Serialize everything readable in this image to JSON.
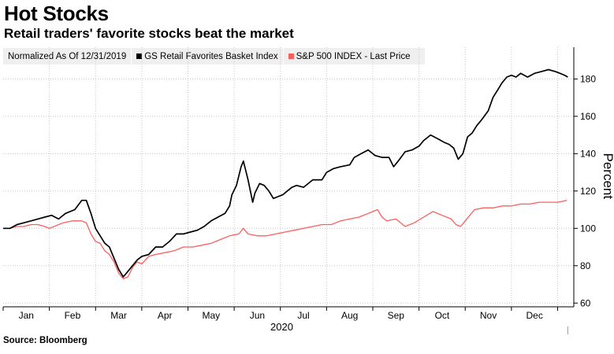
{
  "header": {
    "title": "Hot Stocks",
    "subtitle": "Retail traders' favorite stocks beat the market"
  },
  "legend": {
    "note": "Normalized As Of 12/31/2019",
    "items": [
      {
        "label": "GS Retail Favorites Basket Index",
        "color": "#000000"
      },
      {
        "label": "S&P 500 INDEX - Last Price",
        "color": "#ff5c5c"
      }
    ]
  },
  "footer": {
    "source": "Source: Bloomberg"
  },
  "chart_data": {
    "type": "line",
    "title": "Hot Stocks",
    "subtitle": "Retail traders' favorite stocks beat the market",
    "xlabel": "2020",
    "ylabel": "Percent",
    "x_range": [
      0,
      12.35
    ],
    "ylim": [
      58,
      197
    ],
    "yticks": [
      60,
      80,
      100,
      120,
      140,
      160,
      180
    ],
    "month_tick_positions": [
      0,
      1,
      2,
      3,
      4,
      5,
      6,
      7,
      8,
      9,
      10,
      11,
      12
    ],
    "month_labels": [
      "Jan",
      "Feb",
      "Mar",
      "Apr",
      "May",
      "Jun",
      "Jul",
      "Aug",
      "Sep",
      "Oct",
      "Nov",
      "Dec"
    ],
    "year_label": "2020",
    "grid": true,
    "legend_position": "top-left",
    "series": [
      {
        "name": "GS Retail Favorites Basket Index",
        "color": "#000000",
        "points": [
          [
            0,
            100
          ],
          [
            0.15,
            100
          ],
          [
            0.3,
            102
          ],
          [
            0.45,
            103
          ],
          [
            0.6,
            104
          ],
          [
            0.75,
            105
          ],
          [
            0.9,
            106
          ],
          [
            1.05,
            107
          ],
          [
            1.2,
            105
          ],
          [
            1.35,
            108
          ],
          [
            1.55,
            110
          ],
          [
            1.7,
            115
          ],
          [
            1.8,
            115
          ],
          [
            1.9,
            108
          ],
          [
            2.0,
            100
          ],
          [
            2.1,
            96
          ],
          [
            2.2,
            92
          ],
          [
            2.3,
            90
          ],
          [
            2.4,
            84
          ],
          [
            2.5,
            78
          ],
          [
            2.6,
            74
          ],
          [
            2.7,
            77
          ],
          [
            2.8,
            80
          ],
          [
            2.9,
            83
          ],
          [
            3.0,
            85
          ],
          [
            3.15,
            86
          ],
          [
            3.3,
            90
          ],
          [
            3.45,
            90
          ],
          [
            3.6,
            93
          ],
          [
            3.75,
            97
          ],
          [
            3.9,
            97
          ],
          [
            4.05,
            98
          ],
          [
            4.2,
            99
          ],
          [
            4.35,
            101
          ],
          [
            4.5,
            104
          ],
          [
            4.65,
            106
          ],
          [
            4.8,
            108
          ],
          [
            4.9,
            112
          ],
          [
            4.95,
            118
          ],
          [
            5.05,
            123
          ],
          [
            5.15,
            133
          ],
          [
            5.2,
            136
          ],
          [
            5.3,
            126
          ],
          [
            5.4,
            114
          ],
          [
            5.45,
            119
          ],
          [
            5.55,
            124
          ],
          [
            5.65,
            123
          ],
          [
            5.75,
            120
          ],
          [
            5.85,
            116
          ],
          [
            5.95,
            117
          ],
          [
            6.05,
            118
          ],
          [
            6.15,
            120
          ],
          [
            6.25,
            122
          ],
          [
            6.35,
            123
          ],
          [
            6.5,
            122
          ],
          [
            6.7,
            126
          ],
          [
            6.9,
            126
          ],
          [
            7.0,
            130
          ],
          [
            7.15,
            132
          ],
          [
            7.3,
            133
          ],
          [
            7.5,
            134
          ],
          [
            7.6,
            138
          ],
          [
            7.75,
            140
          ],
          [
            7.9,
            142
          ],
          [
            8.05,
            139
          ],
          [
            8.2,
            138
          ],
          [
            8.35,
            138
          ],
          [
            8.45,
            133
          ],
          [
            8.55,
            136
          ],
          [
            8.7,
            141
          ],
          [
            8.85,
            142
          ],
          [
            9.0,
            144
          ],
          [
            9.1,
            147
          ],
          [
            9.25,
            150
          ],
          [
            9.4,
            148
          ],
          [
            9.55,
            146
          ],
          [
            9.65,
            145
          ],
          [
            9.75,
            143
          ],
          [
            9.85,
            137
          ],
          [
            9.95,
            140
          ],
          [
            10.05,
            149
          ],
          [
            10.15,
            151
          ],
          [
            10.25,
            155
          ],
          [
            10.35,
            158
          ],
          [
            10.5,
            163
          ],
          [
            10.6,
            170
          ],
          [
            10.7,
            174
          ],
          [
            10.8,
            178
          ],
          [
            10.9,
            181
          ],
          [
            11.0,
            182
          ],
          [
            11.1,
            181
          ],
          [
            11.2,
            183
          ],
          [
            11.35,
            181
          ],
          [
            11.5,
            183
          ],
          [
            11.65,
            184
          ],
          [
            11.8,
            185
          ],
          [
            11.95,
            184
          ],
          [
            12.05,
            183
          ],
          [
            12.15,
            182
          ],
          [
            12.22,
            181
          ]
        ]
      },
      {
        "name": "S&P 500 INDEX - Last Price",
        "color": "#ff5c5c",
        "points": [
          [
            0,
            100
          ],
          [
            0.15,
            100
          ],
          [
            0.3,
            101
          ],
          [
            0.45,
            101
          ],
          [
            0.6,
            102
          ],
          [
            0.75,
            102
          ],
          [
            0.9,
            101
          ],
          [
            1.0,
            100
          ],
          [
            1.1,
            101
          ],
          [
            1.3,
            103
          ],
          [
            1.5,
            104
          ],
          [
            1.7,
            104
          ],
          [
            1.8,
            103
          ],
          [
            1.9,
            97
          ],
          [
            2.0,
            93
          ],
          [
            2.1,
            92
          ],
          [
            2.2,
            88
          ],
          [
            2.3,
            86
          ],
          [
            2.4,
            82
          ],
          [
            2.5,
            76
          ],
          [
            2.6,
            73
          ],
          [
            2.7,
            74
          ],
          [
            2.8,
            79
          ],
          [
            2.9,
            82
          ],
          [
            3.0,
            81
          ],
          [
            3.15,
            85
          ],
          [
            3.3,
            86
          ],
          [
            3.5,
            87
          ],
          [
            3.7,
            88
          ],
          [
            3.9,
            90
          ],
          [
            4.1,
            90
          ],
          [
            4.3,
            91
          ],
          [
            4.5,
            92
          ],
          [
            4.7,
            94
          ],
          [
            4.9,
            96
          ],
          [
            5.1,
            97
          ],
          [
            5.2,
            100
          ],
          [
            5.3,
            97
          ],
          [
            5.5,
            96
          ],
          [
            5.7,
            96
          ],
          [
            5.9,
            97
          ],
          [
            6.1,
            98
          ],
          [
            6.3,
            99
          ],
          [
            6.5,
            100
          ],
          [
            6.7,
            101
          ],
          [
            6.9,
            102
          ],
          [
            7.1,
            102
          ],
          [
            7.3,
            104
          ],
          [
            7.5,
            105
          ],
          [
            7.7,
            106
          ],
          [
            7.9,
            108
          ],
          [
            8.1,
            110
          ],
          [
            8.2,
            106
          ],
          [
            8.3,
            104
          ],
          [
            8.5,
            105
          ],
          [
            8.7,
            101
          ],
          [
            8.9,
            103
          ],
          [
            9.1,
            106
          ],
          [
            9.3,
            109
          ],
          [
            9.5,
            107
          ],
          [
            9.7,
            105
          ],
          [
            9.8,
            102
          ],
          [
            9.9,
            101
          ],
          [
            10.0,
            104
          ],
          [
            10.2,
            110
          ],
          [
            10.4,
            111
          ],
          [
            10.6,
            111
          ],
          [
            10.8,
            112
          ],
          [
            11.0,
            112
          ],
          [
            11.2,
            113
          ],
          [
            11.4,
            113
          ],
          [
            11.6,
            114
          ],
          [
            11.8,
            114
          ],
          [
            12.0,
            114
          ],
          [
            12.2,
            115
          ]
        ]
      }
    ]
  }
}
